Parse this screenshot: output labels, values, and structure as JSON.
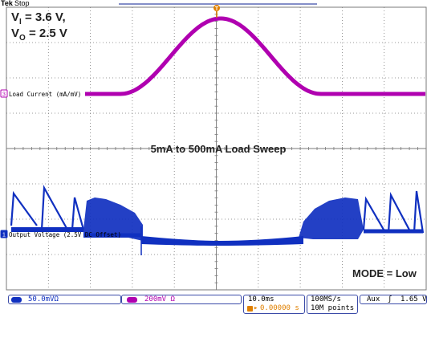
{
  "header": {
    "brand": "Tek",
    "state": "Stop"
  },
  "annotations": {
    "vi_label": "V",
    "vi_sub": "I",
    "vi_value": " = 3.6 V,",
    "vo_label": "V",
    "vo_sub": "O",
    "vo_value": " = 2.5 V",
    "sweep_title": "5mA to 500mA Load Sweep",
    "mode": "MODE = Low"
  },
  "channels": {
    "ch3": {
      "marker": "3",
      "label": "Load Current (mA/mV)",
      "scale": "200mV",
      "units_symbol": "Ω",
      "color": "#b000b0"
    },
    "ch1": {
      "marker": "1",
      "label": "Output Voltage (2.5V DC Offset)",
      "scale": "50.0mV",
      "units_symbol": "Ω",
      "color": "#1030c0"
    }
  },
  "status_bar": {
    "ch1_scale": "50.0mVΩ",
    "ch3_scale": "200mV Ω",
    "timebase": "10.0ms",
    "trigger_pos": "0.00000 s",
    "sample_rate": "100MS/s",
    "record_length": "10M points",
    "trigger_source": "Aux",
    "trigger_slope": "ʃ",
    "trigger_level": "1.65 V"
  },
  "trigger_marker": "T",
  "colors": {
    "grid": "#7a7a7a",
    "accent": "#e08000",
    "box_border": "#3b4ba8"
  }
}
